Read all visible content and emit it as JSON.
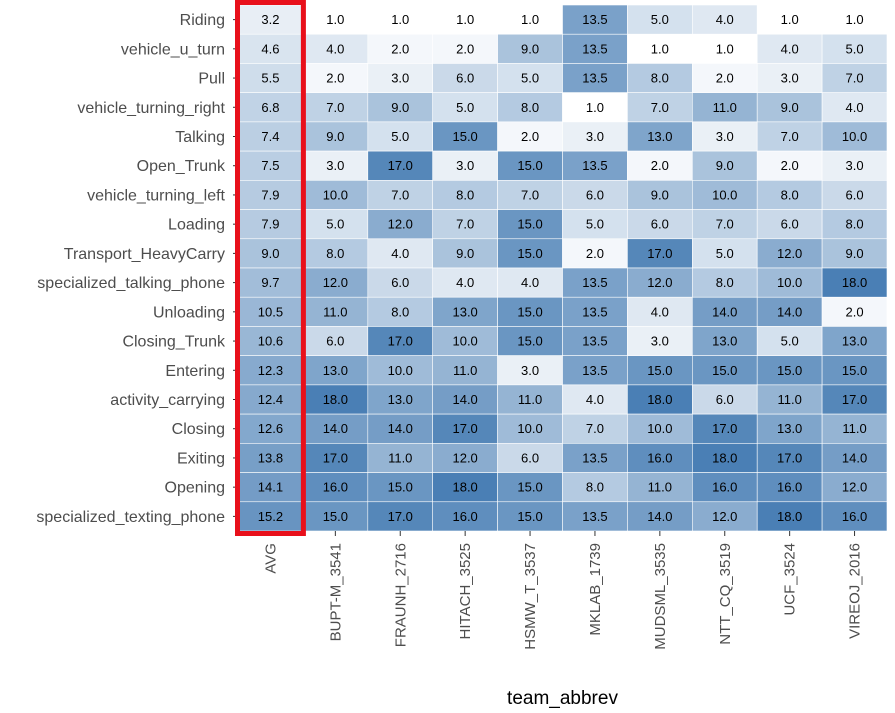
{
  "chart_data": {
    "type": "heatmap",
    "xlabel": "team_abbrev",
    "ylabel": "",
    "columns": [
      "AVG",
      "BUPT-M_3541",
      "FRAUNH_2716",
      "HITACH_3525",
      "HSMW_T_3537",
      "MKLAB_1739",
      "MUDSML_3535",
      "NTT_CQ_3519",
      "UCF_3524",
      "VIREOJ_2016"
    ],
    "rows": [
      "Riding",
      "vehicle_u_turn",
      "Pull",
      "vehicle_turning_right",
      "Talking",
      "Open_Trunk",
      "vehicle_turning_left",
      "Loading",
      "Transport_HeavyCarry",
      "specialized_talking_phone",
      "Unloading",
      "Closing_Trunk",
      "Entering",
      "activity_carrying",
      "Closing",
      "Exiting",
      "Opening",
      "specialized_texting_phone"
    ],
    "values": [
      [
        3.2,
        1.0,
        1.0,
        1.0,
        1.0,
        13.5,
        5.0,
        4.0,
        1.0,
        1.0
      ],
      [
        4.6,
        4.0,
        2.0,
        2.0,
        9.0,
        13.5,
        1.0,
        1.0,
        4.0,
        5.0
      ],
      [
        5.5,
        2.0,
        3.0,
        6.0,
        5.0,
        13.5,
        8.0,
        2.0,
        3.0,
        7.0
      ],
      [
        6.8,
        7.0,
        9.0,
        5.0,
        8.0,
        1.0,
        7.0,
        11.0,
        9.0,
        4.0
      ],
      [
        7.4,
        9.0,
        5.0,
        15.0,
        2.0,
        3.0,
        13.0,
        3.0,
        7.0,
        10.0
      ],
      [
        7.5,
        3.0,
        17.0,
        3.0,
        15.0,
        13.5,
        2.0,
        9.0,
        2.0,
        3.0
      ],
      [
        7.9,
        10.0,
        7.0,
        8.0,
        7.0,
        6.0,
        9.0,
        10.0,
        8.0,
        6.0
      ],
      [
        7.9,
        5.0,
        12.0,
        7.0,
        15.0,
        5.0,
        6.0,
        7.0,
        6.0,
        8.0
      ],
      [
        9.0,
        8.0,
        4.0,
        9.0,
        15.0,
        2.0,
        17.0,
        5.0,
        12.0,
        9.0
      ],
      [
        9.7,
        12.0,
        6.0,
        4.0,
        4.0,
        13.5,
        12.0,
        8.0,
        10.0,
        18.0
      ],
      [
        10.5,
        11.0,
        8.0,
        13.0,
        15.0,
        13.5,
        4.0,
        14.0,
        14.0,
        2.0
      ],
      [
        10.6,
        6.0,
        17.0,
        10.0,
        15.0,
        13.5,
        3.0,
        13.0,
        5.0,
        13.0
      ],
      [
        12.3,
        13.0,
        10.0,
        11.0,
        3.0,
        13.5,
        15.0,
        15.0,
        15.0,
        15.0
      ],
      [
        12.4,
        18.0,
        13.0,
        14.0,
        11.0,
        4.0,
        18.0,
        6.0,
        11.0,
        17.0
      ],
      [
        12.6,
        14.0,
        14.0,
        17.0,
        10.0,
        7.0,
        10.0,
        17.0,
        13.0,
        11.0
      ],
      [
        13.8,
        17.0,
        11.0,
        12.0,
        6.0,
        13.5,
        16.0,
        18.0,
        17.0,
        14.0
      ],
      [
        14.1,
        16.0,
        15.0,
        18.0,
        15.0,
        8.0,
        11.0,
        16.0,
        16.0,
        12.0
      ],
      [
        15.2,
        15.0,
        17.0,
        16.0,
        15.0,
        13.5,
        14.0,
        12.0,
        18.0,
        16.0
      ]
    ],
    "value_range": [
      1,
      18
    ],
    "color_low": "#ffffff",
    "color_high": "#4a7fb5",
    "highlight_column": "AVG",
    "highlight_color": "#e8101b",
    "grid": false,
    "legend": "none"
  }
}
